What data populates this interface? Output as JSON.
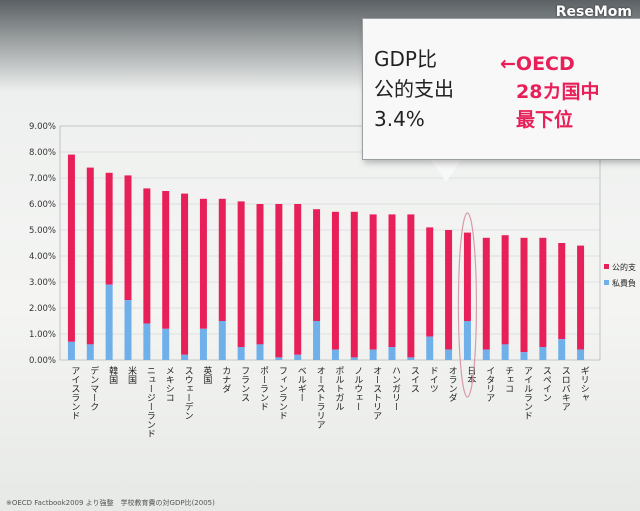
{
  "watermark": "ReseMom",
  "callout": {
    "lines": [
      "GDP比",
      "公的支出",
      "3.4%"
    ],
    "highlight": [
      "←OECD",
      "28カ国中",
      "最下位"
    ]
  },
  "footnote": "※OECD Factbook2009 より強整　学校教育費の対GDP比(2005)",
  "colors": {
    "public": "#e8205a",
    "private": "#6fb0ea",
    "highlight_ring": "#d79aa8"
  },
  "chart_data": {
    "type": "bar",
    "stacked": true,
    "ylim": [
      0,
      9
    ],
    "yticks": [
      "0.00%",
      "1.00%",
      "2.00%",
      "3.00%",
      "4.00%",
      "5.00%",
      "6.00%",
      "7.00%",
      "8.00%",
      "9.00%"
    ],
    "grid": true,
    "legend_position": "right",
    "highlight_category": "日本",
    "categories": [
      "アイスランド",
      "デンマーク",
      "韓国",
      "米国",
      "ニュージーランド",
      "メキシコ",
      "スウェーデン",
      "英国",
      "カナダ",
      "フランス",
      "ポーランド",
      "フィンランド",
      "ベルギー",
      "オーストラリア",
      "ポルトガル",
      "ノルウェー",
      "オーストリア",
      "ハンガリー",
      "スイス",
      "ドイツ",
      "オランダ",
      "日本",
      "イタリア",
      "チェコ",
      "アイルランド",
      "スペイン",
      "スロバキア",
      "ギリシャ"
    ],
    "series": [
      {
        "name": "私費負",
        "values": [
          0.7,
          0.6,
          2.9,
          2.3,
          1.4,
          1.2,
          0.2,
          1.2,
          1.5,
          0.5,
          0.6,
          0.1,
          0.2,
          1.5,
          0.4,
          0.1,
          0.4,
          0.5,
          0.1,
          0.9,
          0.4,
          1.5,
          0.4,
          0.6,
          0.3,
          0.5,
          0.8,
          0.4
        ]
      },
      {
        "name": "公的支",
        "values": [
          7.2,
          6.8,
          4.3,
          4.8,
          5.2,
          5.3,
          6.2,
          5.0,
          4.7,
          5.6,
          5.4,
          5.9,
          5.8,
          4.3,
          5.3,
          5.6,
          5.2,
          5.1,
          5.5,
          4.2,
          4.6,
          3.4,
          4.3,
          4.2,
          4.4,
          4.2,
          3.7,
          4.0
        ]
      }
    ]
  }
}
